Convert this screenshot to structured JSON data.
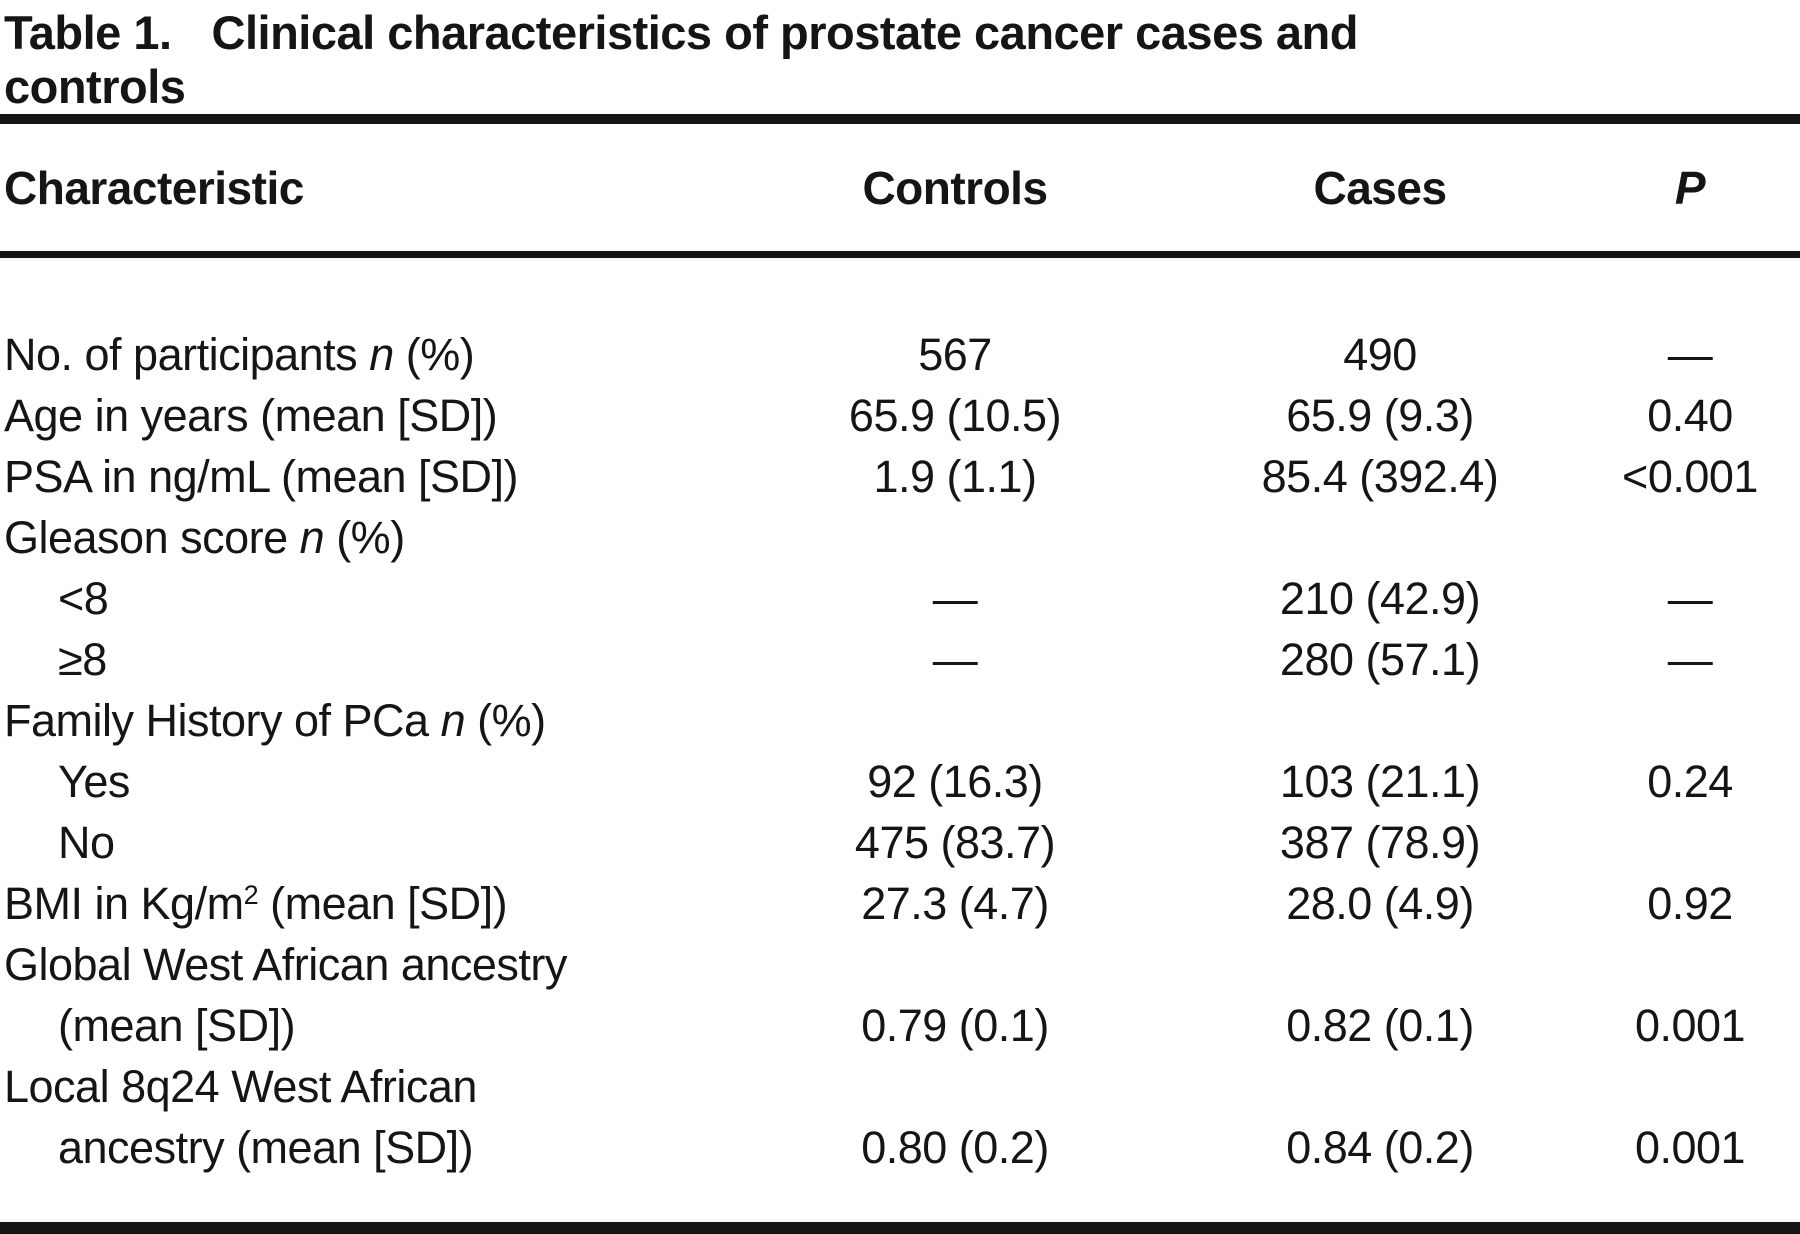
{
  "title": {
    "label": "Table 1.",
    "line1": "Clinical characteristics of prostate cancer cases and",
    "line2": "controls"
  },
  "table": {
    "columns": {
      "characteristic": "Characteristic",
      "controls": "Controls",
      "cases": "Cases",
      "p": "P"
    },
    "rows": [
      {
        "label": [
          {
            "t": "No. of participants "
          },
          {
            "t": "n",
            "i": true
          },
          {
            "t": " (%)"
          }
        ],
        "indent": false,
        "controls": "567",
        "cases": "490",
        "p": "—"
      },
      {
        "label": [
          {
            "t": "Age in years (mean [SD])"
          }
        ],
        "indent": false,
        "controls": "65.9 (10.5)",
        "cases": "65.9 (9.3)",
        "p": "0.40"
      },
      {
        "label": [
          {
            "t": "PSA in ng/mL (mean [SD])"
          }
        ],
        "indent": false,
        "controls": "1.9 (1.1)",
        "cases": "85.4 (392.4)",
        "p": "<0.001"
      },
      {
        "label": [
          {
            "t": "Gleason score "
          },
          {
            "t": "n",
            "i": true
          },
          {
            "t": " (%)"
          }
        ],
        "indent": false,
        "controls": "",
        "cases": "",
        "p": ""
      },
      {
        "label": [
          {
            "t": "<8"
          }
        ],
        "indent": true,
        "controls": "—",
        "cases": "210 (42.9)",
        "p": "—"
      },
      {
        "label": [
          {
            "t": "≥8"
          }
        ],
        "indent": true,
        "controls": "—",
        "cases": "280 (57.1)",
        "p": "—"
      },
      {
        "label": [
          {
            "t": "Family History of PCa "
          },
          {
            "t": "n",
            "i": true
          },
          {
            "t": " (%)"
          }
        ],
        "indent": false,
        "controls": "",
        "cases": "",
        "p": ""
      },
      {
        "label": [
          {
            "t": "Yes"
          }
        ],
        "indent": true,
        "controls": "92 (16.3)",
        "cases": "103 (21.1)",
        "p": "0.24"
      },
      {
        "label": [
          {
            "t": "No"
          }
        ],
        "indent": true,
        "controls": "475 (83.7)",
        "cases": "387 (78.9)",
        "p": ""
      },
      {
        "label": [
          {
            "t": "BMI in Kg/m"
          },
          {
            "t": "2",
            "sup": true
          },
          {
            "t": " (mean [SD])"
          }
        ],
        "indent": false,
        "controls": "27.3 (4.7)",
        "cases": "28.0 (4.9)",
        "p": "0.92"
      },
      {
        "label": [
          {
            "t": "Global West African ancestry"
          }
        ],
        "indent": false,
        "controls": "",
        "cases": "",
        "p": ""
      },
      {
        "label": [
          {
            "t": "(mean [SD])"
          }
        ],
        "indent": true,
        "controls": "0.79 (0.1)",
        "cases": "0.82 (0.1)",
        "p": "0.001"
      },
      {
        "label": [
          {
            "t": "Local 8q24 West African"
          }
        ],
        "indent": false,
        "controls": "",
        "cases": "",
        "p": ""
      },
      {
        "label": [
          {
            "t": "ancestry (mean [SD])"
          }
        ],
        "indent": true,
        "controls": "0.80 (0.2)",
        "cases": "0.84 (0.2)",
        "p": "0.001"
      }
    ]
  }
}
